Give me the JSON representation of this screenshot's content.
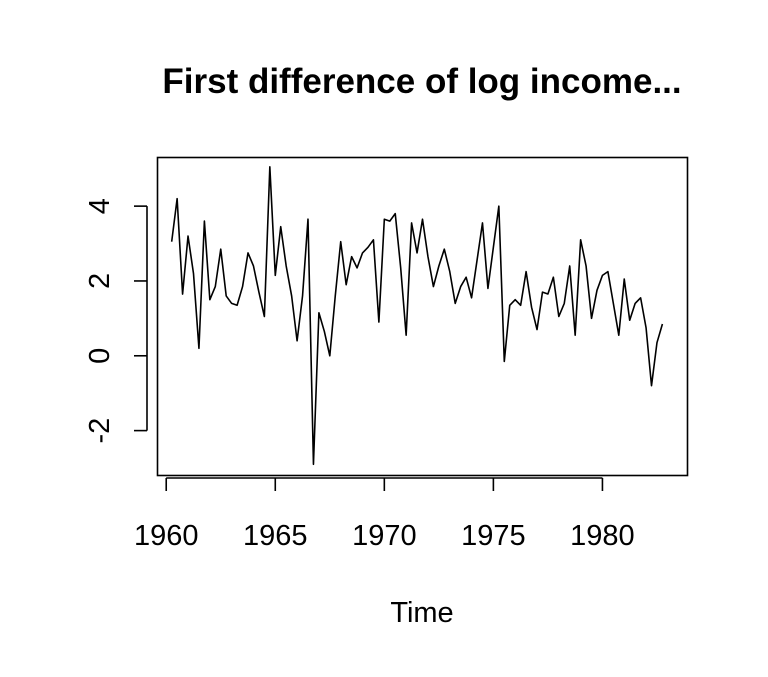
{
  "chart_data": {
    "type": "line",
    "title": "First difference of log income...",
    "xlabel": "Time",
    "ylabel": "",
    "xlim": [
      1959.6,
      1983.9
    ],
    "ylim": [
      -3.2,
      5.3
    ],
    "xticks": [
      1960,
      1965,
      1970,
      1975,
      1980
    ],
    "xtick_labels": [
      "1960",
      "1965",
      "1970",
      "1975",
      "1980"
    ],
    "yticks": [
      -2,
      0,
      2,
      4
    ],
    "ytick_labels": [
      "-2",
      "0",
      "2",
      "4"
    ],
    "grid": false,
    "legend": "none",
    "line_color": "#000000",
    "series": [
      {
        "x": [
          1960.25,
          1960.5,
          1960.75,
          1961.0,
          1961.25,
          1961.5,
          1961.75,
          1962.0,
          1962.25,
          1962.5,
          1962.75,
          1963.0,
          1963.25,
          1963.5,
          1963.75,
          1964.0,
          1964.25,
          1964.5,
          1964.75,
          1965.0,
          1965.25,
          1965.5,
          1965.75,
          1966.0,
          1966.25,
          1966.5,
          1966.75,
          1967.0,
          1967.25,
          1967.5,
          1967.75,
          1968.0,
          1968.25,
          1968.5,
          1968.75,
          1969.0,
          1969.25,
          1969.5,
          1969.75,
          1970.0,
          1970.25,
          1970.5,
          1970.75,
          1971.0,
          1971.25,
          1971.5,
          1971.75,
          1972.0,
          1972.25,
          1972.5,
          1972.75,
          1973.0,
          1973.25,
          1973.5,
          1973.75,
          1974.0,
          1974.25,
          1974.5,
          1974.75,
          1975.0,
          1975.25,
          1975.5,
          1975.75,
          1976.0,
          1976.25,
          1976.5,
          1976.75,
          1977.0,
          1977.25,
          1977.5,
          1977.75,
          1978.0,
          1978.25,
          1978.5,
          1978.75,
          1979.0,
          1979.25,
          1979.5,
          1979.75,
          1980.0,
          1980.25,
          1980.5,
          1980.75,
          1981.0,
          1981.25,
          1981.5,
          1981.75,
          1982.0,
          1982.25,
          1982.5,
          1982.75
        ],
        "values": [
          3.05,
          4.2,
          1.65,
          3.2,
          2.2,
          0.2,
          3.6,
          1.5,
          1.85,
          2.85,
          1.6,
          1.4,
          1.35,
          1.85,
          2.75,
          2.4,
          1.7,
          1.05,
          5.05,
          2.15,
          3.45,
          2.4,
          1.6,
          0.4,
          1.6,
          3.65,
          -2.9,
          1.15,
          0.65,
          0.0,
          1.6,
          3.05,
          1.9,
          2.65,
          2.35,
          2.75,
          2.9,
          3.1,
          0.9,
          3.65,
          3.6,
          3.8,
          2.35,
          0.55,
          3.55,
          2.75,
          3.65,
          2.65,
          1.85,
          2.4,
          2.85,
          2.25,
          1.4,
          1.85,
          2.1,
          1.55,
          2.55,
          3.55,
          1.8,
          2.9,
          4.0,
          -0.15,
          1.35,
          1.5,
          1.35,
          2.25,
          1.3,
          0.7,
          1.7,
          1.65,
          2.1,
          1.05,
          1.4,
          2.4,
          0.55,
          3.1,
          2.4,
          1.0,
          1.75,
          2.15,
          2.25,
          1.4,
          0.55,
          2.05,
          0.95,
          1.4,
          1.55,
          0.75,
          -0.8,
          0.35,
          0.85
        ]
      }
    ]
  }
}
